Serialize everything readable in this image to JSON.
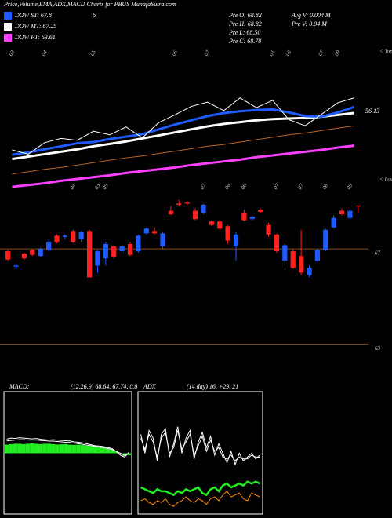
{
  "header": {
    "title": "Price,Volume,EMA,ADX,MACD Charts for PBUS MunafaSutra.com",
    "note": "6",
    "legend": [
      {
        "label": "DOW ST: 67.8",
        "color": "#1e5cff"
      },
      {
        "label": "DOW MT: 67.25",
        "color": "#ffffff"
      },
      {
        "label": "DOW PT: 63.61",
        "color": "#ff40ff"
      }
    ],
    "stats_left": [
      "Pre  O: 68.82",
      "Pre  H: 68.82",
      "Pre  L: 68.50",
      "Pre  C: 68.78"
    ],
    "stats_right": [
      "Avg V: 0.004  M",
      "Pre  V: 0.04  M"
    ]
  },
  "chart_data": [
    {
      "type": "line",
      "categories": [
        "03",
        null,
        "04",
        null,
        null,
        "05",
        null,
        null,
        null,
        null,
        "06",
        null,
        "07",
        null,
        null,
        null,
        "01",
        "08",
        null,
        "07",
        "09",
        null
      ],
      "ylim": [
        42,
        66
      ],
      "annotations": [
        "56.13",
        "< Tops"
      ],
      "series": [
        {
          "color": "#ff40ff",
          "width": 3,
          "values": [
            42.9,
            43.2,
            43.5,
            43.9,
            44.2,
            44.5,
            44.8,
            45.2,
            45.5,
            45.8,
            46.1,
            46.5,
            46.8,
            47.1,
            47.4,
            47.8,
            48.1,
            48.4,
            48.7,
            49.0,
            49.4,
            49.7
          ]
        },
        {
          "color": "#b8682a",
          "width": 1,
          "values": [
            45.0,
            45.4,
            45.8,
            46.1,
            46.5,
            46.9,
            47.3,
            47.7,
            48.0,
            48.4,
            48.8,
            49.2,
            49.6,
            49.9,
            50.3,
            50.7,
            51.1,
            51.5,
            51.8,
            52.2,
            52.6,
            53.0
          ]
        },
        {
          "color": "#ffffff",
          "width": 3,
          "values": [
            47.5,
            47.9,
            48.3,
            48.7,
            49.1,
            49.6,
            50.0,
            50.4,
            50.9,
            51.4,
            51.9,
            52.4,
            52.9,
            53.3,
            53.6,
            53.9,
            54.1,
            54.2,
            54.3,
            54.5,
            54.8,
            55.1
          ]
        },
        {
          "color": "#1e5cff",
          "width": 3,
          "values": [
            48.2,
            48.6,
            49.1,
            49.6,
            50.1,
            50.3,
            50.8,
            51.2,
            51.6,
            52.4,
            53.2,
            53.9,
            54.6,
            55.1,
            55.4,
            55.6,
            55.7,
            55.2,
            54.6,
            54.5,
            55.2,
            56.1
          ]
        },
        {
          "color": "#ffffff",
          "width": 1,
          "values": [
            49.0,
            48.3,
            50.2,
            50.9,
            50.6,
            52.1,
            51.5,
            52.8,
            51.0,
            53.5,
            54.8,
            56.2,
            56.9,
            55.5,
            57.6,
            56.0,
            57.2,
            54.0,
            53.0,
            54.9,
            56.8,
            57.6
          ]
        }
      ]
    },
    {
      "type": "candlestick",
      "categories": [
        null,
        null,
        null,
        null,
        null,
        null,
        null,
        null,
        "04",
        null,
        null,
        "03",
        "05",
        null,
        null,
        null,
        null,
        null,
        null,
        null,
        null,
        null,
        null,
        null,
        "07",
        null,
        null,
        "06",
        null,
        "06",
        null,
        null,
        null,
        "07",
        null,
        null,
        "07",
        null,
        null,
        "08",
        null,
        null,
        "08",
        null
      ],
      "ylim": [
        61.3,
        69.87
      ],
      "yticks": [
        67,
        63
      ],
      "grid": true,
      "grid_color": "#8b4a1c",
      "up_color": "#1e5cff",
      "down_color": "#ff2020",
      "annotations": [
        "< Lows"
      ],
      "open": [
        66.9,
        66.25,
        66.8,
        66.95,
        66.7,
        66.95,
        67.55,
        67.5,
        67.75,
        67.4,
        67.75,
        66.3,
        66.6,
        67.1,
        66.9,
        67.2,
        66.9,
        67.65,
        67.75,
        67.1,
        68.6,
        68.9,
        68.95,
        68.6,
        68.5,
        68.15,
        68.15,
        67.95,
        67.1,
        68.5,
        68.25,
        68.65,
        68.0,
        67.6,
        66.5,
        66.9,
        66.7,
        65.9,
        66.5,
        66.95,
        67.9,
        68.6,
        68.3,
        68.82
      ],
      "high": [
        66.95,
        66.35,
        66.85,
        67.0,
        67.05,
        67.4,
        67.6,
        67.6,
        67.8,
        67.75,
        67.8,
        66.95,
        67.3,
        67.15,
        67.15,
        67.3,
        67.6,
        67.9,
        67.9,
        67.7,
        68.8,
        69.05,
        69.0,
        68.7,
        68.9,
        68.2,
        68.2,
        68.0,
        67.7,
        68.65,
        68.4,
        68.7,
        68.1,
        67.65,
        67.2,
        67.0,
        67.8,
        66.3,
        67.0,
        67.85,
        68.4,
        68.7,
        68.65,
        68.82
      ],
      "low": [
        66.5,
        66.15,
        66.55,
        66.7,
        66.65,
        66.9,
        67.25,
        67.4,
        67.25,
        67.3,
        65.8,
        66.0,
        66.3,
        66.6,
        66.8,
        66.7,
        66.85,
        67.6,
        67.6,
        67.0,
        68.4,
        68.8,
        68.85,
        68.2,
        68.45,
        67.95,
        67.8,
        67.2,
        66.5,
        68.15,
        68.2,
        68.5,
        67.5,
        66.85,
        66.3,
        66.15,
        65.9,
        65.8,
        66.45,
        66.9,
        67.85,
        68.4,
        68.25,
        68.5
      ],
      "close": [
        66.55,
        66.3,
        66.6,
        66.75,
        67.0,
        67.3,
        67.3,
        67.55,
        67.3,
        67.7,
        65.8,
        66.9,
        67.2,
        66.65,
        67.1,
        66.75,
        67.55,
        67.85,
        67.65,
        67.65,
        68.45,
        68.85,
        68.9,
        68.25,
        68.85,
        68.0,
        67.85,
        67.35,
        67.6,
        68.2,
        68.35,
        68.55,
        67.6,
        66.9,
        67.15,
        66.2,
        66.0,
        66.2,
        66.95,
        67.8,
        68.3,
        68.45,
        68.6,
        68.78
      ]
    },
    {
      "type": "macd",
      "title": "MACD:",
      "subtitle": "(12,26,9) 68.64, 67.74, 0.8",
      "ylim": [
        -3,
        3
      ],
      "histogram": {
        "color": "#22ee22",
        "values": [
          0.45,
          0.48,
          0.5,
          0.5,
          0.48,
          0.5,
          0.52,
          0.5,
          0.48,
          0.5,
          0.5,
          0.48,
          0.46,
          0.47,
          0.48,
          0.45,
          0.44,
          0.45,
          0.43,
          0.4,
          0.38,
          0.36,
          0.33,
          0.3,
          0.25,
          0.2,
          0.1,
          0.0,
          -0.15,
          -0.1
        ]
      },
      "series": [
        {
          "color": "#ffffff",
          "width": 1,
          "values": [
            0.75,
            0.8,
            0.78,
            0.82,
            0.8,
            0.78,
            0.76,
            0.78,
            0.74,
            0.72,
            0.7,
            0.72,
            0.7,
            0.68,
            0.66,
            0.65,
            0.6,
            0.58,
            0.55,
            0.5,
            0.45,
            0.4,
            0.38,
            0.35,
            0.3,
            0.25,
            0.1,
            -0.1,
            -0.2,
            0.05
          ]
        },
        {
          "color": "#ffffff",
          "width": 1,
          "values": [
            0.65,
            0.68,
            0.7,
            0.72,
            0.72,
            0.7,
            0.7,
            0.7,
            0.68,
            0.66,
            0.64,
            0.64,
            0.62,
            0.6,
            0.58,
            0.57,
            0.54,
            0.5,
            0.47,
            0.43,
            0.4,
            0.36,
            0.33,
            0.3,
            0.25,
            0.2,
            0.1,
            0.0,
            -0.1,
            0.0
          ]
        }
      ]
    },
    {
      "type": "line",
      "title": "ADX",
      "subtitle": "(14 day) 16, +29, 21",
      "ylim": [
        0,
        60
      ],
      "series": [
        {
          "color": "#ffffff",
          "width": 1,
          "values": [
            40,
            30,
            42,
            38,
            26,
            40,
            43,
            28,
            35,
            44,
            30,
            38,
            42,
            27,
            36,
            41,
            33,
            39,
            29,
            35,
            30,
            25,
            31,
            24,
            30,
            26,
            28,
            30,
            27,
            29
          ]
        },
        {
          "color": "#ffffff",
          "width": 1,
          "values": [
            38,
            32,
            40,
            36,
            28,
            38,
            41,
            30,
            33,
            42,
            32,
            36,
            40,
            29,
            34,
            39,
            31,
            37,
            31,
            33,
            28,
            27,
            29,
            26,
            28,
            27,
            27,
            29,
            28,
            28
          ]
        },
        {
          "color": "#22ee22",
          "width": 2.5,
          "values": [
            12,
            11,
            10,
            9,
            11,
            10,
            10,
            9,
            8,
            10,
            9,
            11,
            10,
            11,
            12,
            9,
            8,
            11,
            12,
            10,
            13,
            14,
            12,
            13,
            14,
            13,
            15,
            14,
            15,
            14
          ]
        },
        {
          "color": "#ff8c00",
          "width": 1,
          "values": [
            5,
            6,
            4,
            3,
            5,
            4,
            6,
            3,
            2,
            4,
            5,
            7,
            5,
            4,
            6,
            5,
            3,
            6,
            7,
            5,
            8,
            10,
            7,
            8,
            9,
            6,
            5,
            9,
            8,
            7
          ]
        }
      ]
    }
  ]
}
